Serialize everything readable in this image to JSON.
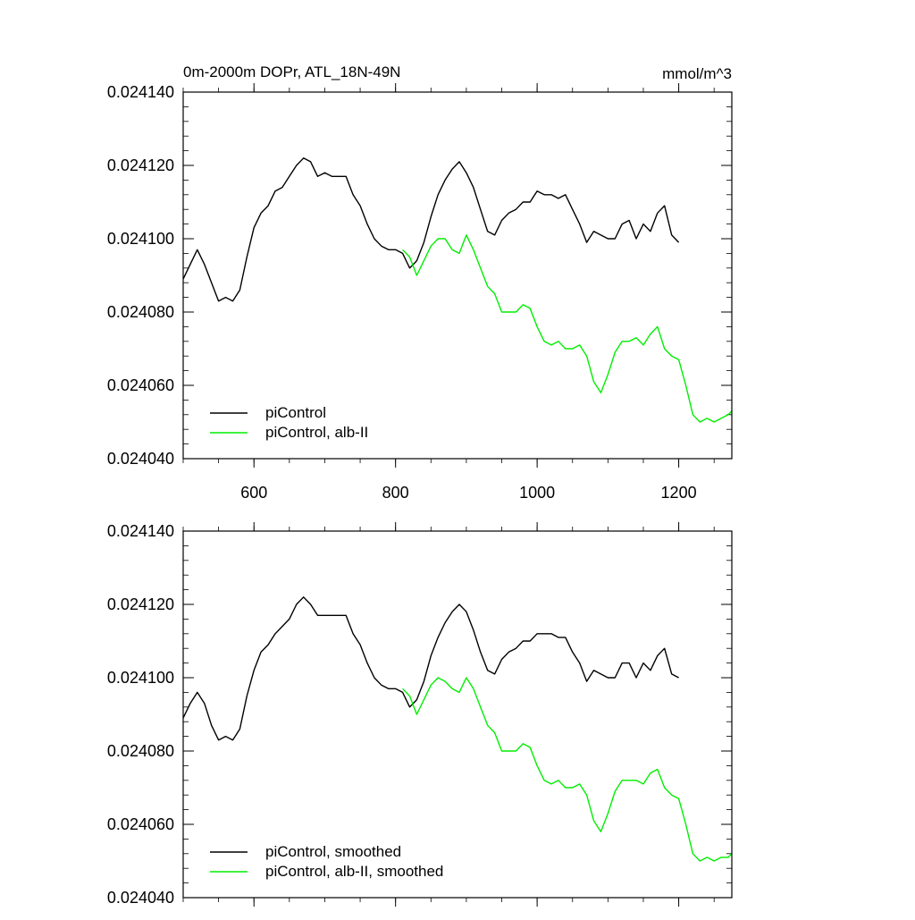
{
  "chart_data": [
    {
      "type": "line",
      "title": "0m-2000m DOPr, ATL_18N-49N",
      "units": "mmol/m^3",
      "xlim": [
        500,
        1275
      ],
      "ylim": [
        0.02404,
        0.02414
      ],
      "x_ticks": [
        600,
        800,
        1000,
        1200
      ],
      "x_tick_labels": [
        "600",
        "800",
        "1000",
        "1200"
      ],
      "y_ticks": [
        0.02404,
        0.02406,
        0.02408,
        0.0241,
        0.02412,
        0.02414
      ],
      "y_tick_labels": [
        "0.024040",
        "0.024060",
        "0.024080",
        "0.024100",
        "0.024120",
        "0.024140"
      ],
      "grid": false,
      "legend_position": "bottom-left",
      "series": [
        {
          "name": "piControl",
          "color": "#000000",
          "x": [
            500,
            510,
            520,
            530,
            540,
            550,
            560,
            570,
            580,
            590,
            600,
            610,
            620,
            630,
            640,
            650,
            660,
            670,
            680,
            690,
            700,
            710,
            720,
            730,
            740,
            750,
            760,
            770,
            780,
            790,
            800,
            810,
            820,
            825,
            830,
            840,
            850,
            860,
            870,
            880,
            890,
            900,
            910,
            920,
            930,
            940,
            950,
            960,
            970,
            980,
            990,
            1000,
            1010,
            1020,
            1030,
            1040,
            1050,
            1060,
            1070,
            1080,
            1090,
            1100,
            1110,
            1120,
            1130,
            1140,
            1150,
            1160,
            1170,
            1180,
            1190,
            1200
          ],
          "y": [
            0.024089,
            0.024093,
            0.024097,
            0.024093,
            0.024088,
            0.024083,
            0.024084,
            0.024083,
            0.024086,
            0.024095,
            0.024103,
            0.024107,
            0.024109,
            0.024113,
            0.024114,
            0.024117,
            0.02412,
            0.024122,
            0.024121,
            0.024117,
            0.024118,
            0.024117,
            0.024117,
            0.024117,
            0.024112,
            0.024109,
            0.024104,
            0.0241,
            0.024098,
            0.024097,
            0.024097,
            0.024096,
            0.024092,
            0.024093,
            0.024094,
            0.024099,
            0.024106,
            0.024112,
            0.024116,
            0.024119,
            0.024121,
            0.024118,
            0.024114,
            0.024108,
            0.024102,
            0.024101,
            0.024105,
            0.024107,
            0.024108,
            0.02411,
            0.02411,
            0.024113,
            0.024112,
            0.024112,
            0.024111,
            0.024112,
            0.024108,
            0.024104,
            0.024099,
            0.024102,
            0.024101,
            0.0241,
            0.0241,
            0.024104,
            0.024105,
            0.0241,
            0.024104,
            0.024102,
            0.024107,
            0.024109,
            0.024101,
            0.024099
          ]
        },
        {
          "name": "piControl, alb-II",
          "color": "#00ee00",
          "x": [
            810,
            820,
            830,
            840,
            850,
            860,
            870,
            880,
            890,
            900,
            910,
            920,
            930,
            940,
            950,
            960,
            970,
            980,
            990,
            1000,
            1010,
            1020,
            1030,
            1040,
            1050,
            1060,
            1070,
            1080,
            1090,
            1100,
            1110,
            1120,
            1130,
            1140,
            1150,
            1160,
            1170,
            1180,
            1190,
            1200,
            1210,
            1220,
            1230,
            1240,
            1250,
            1260,
            1270,
            1275
          ],
          "y": [
            0.024097,
            0.024095,
            0.02409,
            0.024094,
            0.024098,
            0.0241,
            0.0241,
            0.024097,
            0.024096,
            0.024101,
            0.024097,
            0.024092,
            0.024087,
            0.024085,
            0.02408,
            0.02408,
            0.02408,
            0.024082,
            0.024081,
            0.024076,
            0.024072,
            0.024071,
            0.024072,
            0.02407,
            0.02407,
            0.024071,
            0.024068,
            0.024061,
            0.024058,
            0.024063,
            0.024069,
            0.024072,
            0.024072,
            0.024073,
            0.024071,
            0.024074,
            0.024076,
            0.02407,
            0.024068,
            0.024067,
            0.02406,
            0.024052,
            0.02405,
            0.024051,
            0.02405,
            0.024051,
            0.024052,
            0.024053
          ]
        }
      ]
    },
    {
      "type": "line",
      "xlim": [
        500,
        1275
      ],
      "ylim": [
        0.02404,
        0.02414
      ],
      "x_ticks": [
        600,
        800,
        1000,
        1200
      ],
      "y_ticks": [
        0.02404,
        0.02406,
        0.02408,
        0.0241,
        0.02412,
        0.02414
      ],
      "y_tick_labels": [
        "0.024040",
        "0.024060",
        "0.024080",
        "0.024100",
        "0.024120",
        "0.024140"
      ],
      "grid": false,
      "legend_position": "bottom-left",
      "series": [
        {
          "name": "piControl, smoothed",
          "color": "#000000",
          "x": [
            500,
            510,
            520,
            530,
            540,
            550,
            560,
            570,
            580,
            590,
            600,
            610,
            620,
            630,
            640,
            650,
            660,
            670,
            680,
            690,
            700,
            710,
            720,
            730,
            740,
            750,
            760,
            770,
            780,
            790,
            800,
            810,
            820,
            825,
            830,
            840,
            850,
            860,
            870,
            880,
            890,
            900,
            910,
            920,
            930,
            940,
            950,
            960,
            970,
            980,
            990,
            1000,
            1010,
            1020,
            1030,
            1040,
            1050,
            1060,
            1070,
            1080,
            1090,
            1100,
            1110,
            1120,
            1130,
            1140,
            1150,
            1160,
            1170,
            1180,
            1190,
            1200
          ],
          "y": [
            0.024089,
            0.024093,
            0.024096,
            0.024093,
            0.024087,
            0.024083,
            0.024084,
            0.024083,
            0.024086,
            0.024095,
            0.024102,
            0.024107,
            0.024109,
            0.024112,
            0.024114,
            0.024116,
            0.02412,
            0.024122,
            0.02412,
            0.024117,
            0.024117,
            0.024117,
            0.024117,
            0.024117,
            0.024112,
            0.024109,
            0.024104,
            0.0241,
            0.024098,
            0.024097,
            0.024097,
            0.024096,
            0.024092,
            0.024093,
            0.024094,
            0.024099,
            0.024106,
            0.024111,
            0.024115,
            0.024118,
            0.02412,
            0.024118,
            0.024113,
            0.024107,
            0.024102,
            0.024101,
            0.024105,
            0.024107,
            0.024108,
            0.02411,
            0.02411,
            0.024112,
            0.024112,
            0.024112,
            0.024111,
            0.024111,
            0.024107,
            0.024104,
            0.024099,
            0.024102,
            0.024101,
            0.0241,
            0.0241,
            0.024104,
            0.024104,
            0.0241,
            0.024104,
            0.024102,
            0.024106,
            0.024108,
            0.024101,
            0.0241
          ]
        },
        {
          "name": "piControl, alb-II, smoothed",
          "color": "#00ee00",
          "x": [
            810,
            820,
            830,
            840,
            850,
            860,
            870,
            880,
            890,
            900,
            910,
            920,
            930,
            940,
            950,
            960,
            970,
            980,
            990,
            1000,
            1010,
            1020,
            1030,
            1040,
            1050,
            1060,
            1070,
            1080,
            1090,
            1100,
            1110,
            1120,
            1130,
            1140,
            1150,
            1160,
            1170,
            1180,
            1190,
            1200,
            1210,
            1220,
            1230,
            1240,
            1250,
            1260,
            1270,
            1275
          ],
          "y": [
            0.024097,
            0.024095,
            0.02409,
            0.024094,
            0.024098,
            0.0241,
            0.024099,
            0.024097,
            0.024096,
            0.0241,
            0.024097,
            0.024092,
            0.024087,
            0.024085,
            0.02408,
            0.02408,
            0.02408,
            0.024082,
            0.024081,
            0.024076,
            0.024072,
            0.024071,
            0.024072,
            0.02407,
            0.02407,
            0.024071,
            0.024068,
            0.024061,
            0.024058,
            0.024063,
            0.024069,
            0.024072,
            0.024072,
            0.024072,
            0.024071,
            0.024074,
            0.024075,
            0.02407,
            0.024068,
            0.024067,
            0.02406,
            0.024052,
            0.02405,
            0.024051,
            0.02405,
            0.024051,
            0.024051,
            0.024052
          ]
        }
      ]
    }
  ]
}
